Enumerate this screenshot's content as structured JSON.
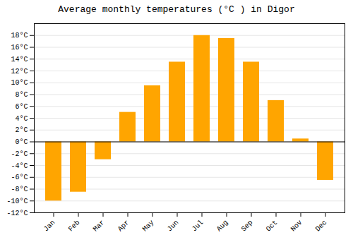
{
  "chart_data": {
    "type": "bar",
    "title": "Average monthly temperatures (°C ) in Digor",
    "categories": [
      "Jan",
      "Feb",
      "Mar",
      "Apr",
      "May",
      "Jun",
      "Jul",
      "Aug",
      "Sep",
      "Oct",
      "Nov",
      "Dec"
    ],
    "values": [
      -10,
      -8.5,
      -3,
      5,
      9.5,
      13.5,
      18,
      17.5,
      13.5,
      7,
      0.5,
      -6.5
    ],
    "color": "#FFA500",
    "ylim": [
      -12,
      20
    ],
    "yticks": [
      {
        "value": -12,
        "label": "-12°C"
      },
      {
        "value": -10,
        "label": "-10°C"
      },
      {
        "value": -8,
        "label": "-8°C"
      },
      {
        "value": -6,
        "label": "-6°C"
      },
      {
        "value": -4,
        "label": "-4°C"
      },
      {
        "value": -2,
        "label": "-2°C"
      },
      {
        "value": 0,
        "label": "0°C"
      },
      {
        "value": 2,
        "label": "2°C"
      },
      {
        "value": 4,
        "label": "4°C"
      },
      {
        "value": 6,
        "label": "6°C"
      },
      {
        "value": 8,
        "label": "8°C"
      },
      {
        "value": 10,
        "label": "10°C"
      },
      {
        "value": 12,
        "label": "12°C"
      },
      {
        "value": 14,
        "label": "14°C"
      },
      {
        "value": 16,
        "label": "16°C"
      },
      {
        "value": 18,
        "label": "18°C"
      }
    ],
    "grid": true
  }
}
